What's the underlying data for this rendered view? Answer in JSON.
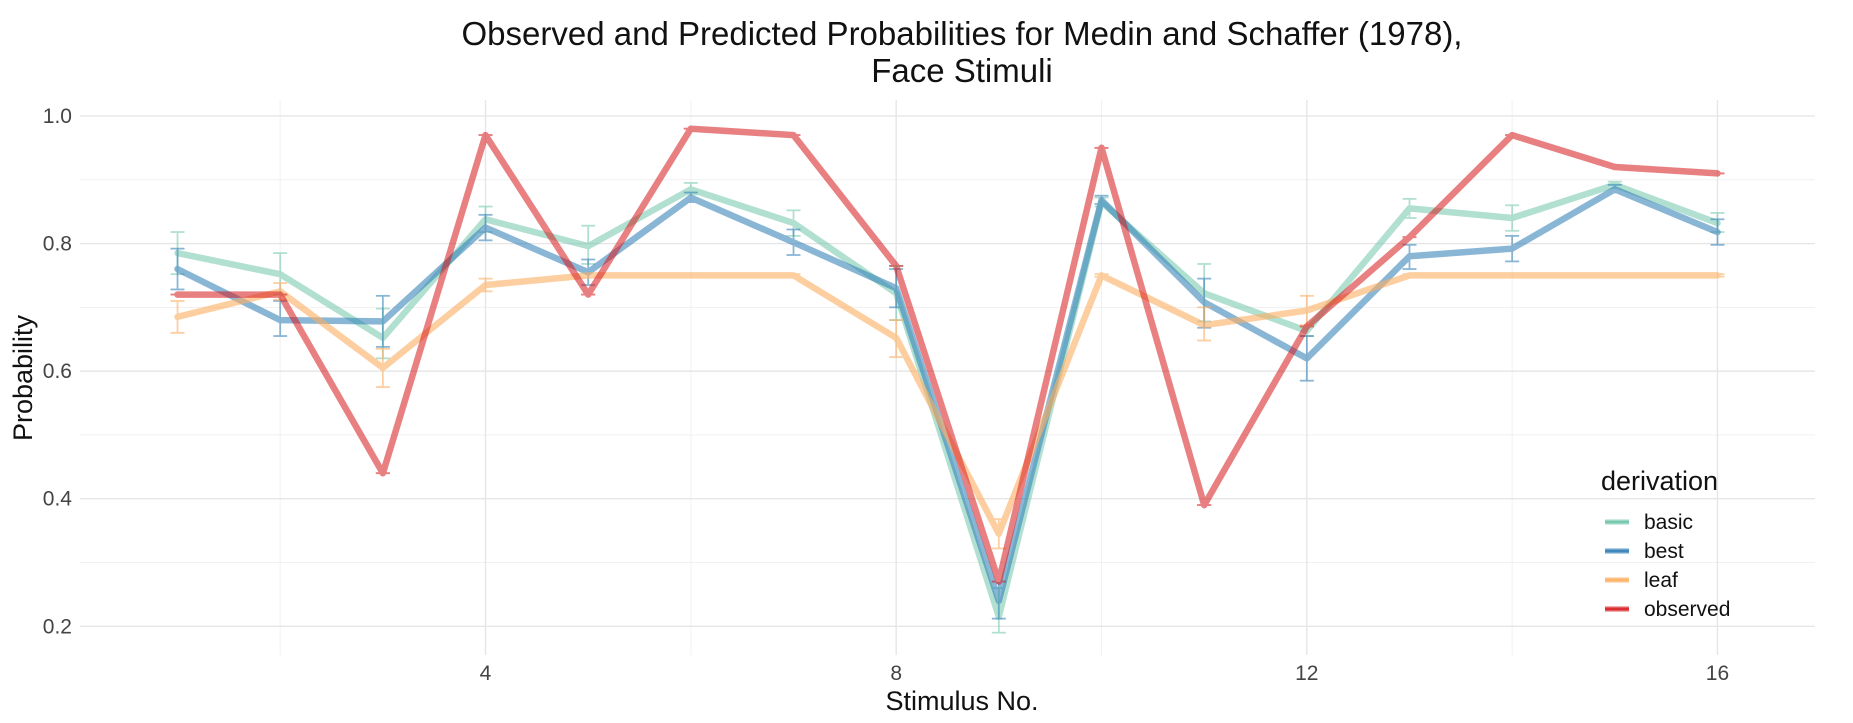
{
  "chart_data": {
    "type": "line",
    "title_line1": "Observed and Predicted Probabilities for Medin and Schaffer (1978),",
    "title_line2": "Face Stimuli",
    "xlabel": "Stimulus No.",
    "ylabel": "Probability",
    "xlim": [
      0.05,
      16.95
    ],
    "ylim": [
      0.155,
      1.025
    ],
    "x_ticks": [
      4,
      8,
      12,
      16
    ],
    "x_minor": [
      2,
      6,
      10,
      14
    ],
    "y_ticks": [
      0.2,
      0.4,
      0.6,
      0.8,
      1.0
    ],
    "y_tick_labels": [
      "0.2",
      "0.4",
      "0.6",
      "0.8",
      "1.0"
    ],
    "y_minor": [
      0.3,
      0.5,
      0.7,
      0.9
    ],
    "grid": true,
    "legend": {
      "title": "derivation",
      "position": "bottom-right"
    },
    "x": [
      1,
      2,
      3,
      4,
      5,
      6,
      7,
      8,
      9,
      10,
      11,
      12,
      13,
      14,
      15,
      16
    ],
    "series": [
      {
        "name": "basic",
        "color": "#66c2a5",
        "opacity": 0.5,
        "values": [
          0.785,
          0.752,
          0.652,
          0.838,
          0.796,
          0.885,
          0.832,
          0.722,
          0.215,
          0.865,
          0.722,
          0.663,
          0.855,
          0.84,
          0.892,
          0.832
        ],
        "err_low": [
          0.752,
          0.72,
          0.62,
          0.818,
          0.768,
          0.877,
          0.812,
          0.68,
          0.19,
          0.858,
          0.678,
          0.655,
          0.84,
          0.82,
          0.887,
          0.818
        ],
        "err_high": [
          0.818,
          0.785,
          0.698,
          0.858,
          0.828,
          0.895,
          0.852,
          0.765,
          0.26,
          0.872,
          0.768,
          0.67,
          0.87,
          0.86,
          0.897,
          0.848
        ]
      },
      {
        "name": "best",
        "color": "#2c7bb6",
        "opacity": 0.55,
        "values": [
          0.76,
          0.68,
          0.678,
          0.825,
          0.755,
          0.872,
          0.802,
          0.73,
          0.24,
          0.868,
          0.708,
          0.62,
          0.78,
          0.792,
          0.885,
          0.818
        ],
        "err_low": [
          0.728,
          0.655,
          0.638,
          0.805,
          0.735,
          0.865,
          0.782,
          0.7,
          0.212,
          0.862,
          0.668,
          0.585,
          0.76,
          0.772,
          0.88,
          0.798
        ],
        "err_high": [
          0.792,
          0.71,
          0.718,
          0.845,
          0.775,
          0.88,
          0.822,
          0.76,
          0.268,
          0.875,
          0.745,
          0.655,
          0.798,
          0.812,
          0.892,
          0.838
        ]
      },
      {
        "name": "leaf",
        "color": "#fdae61",
        "opacity": 0.6,
        "values": [
          0.685,
          0.725,
          0.605,
          0.735,
          0.75,
          0.75,
          0.75,
          0.652,
          0.345,
          0.75,
          0.672,
          0.695,
          0.75,
          0.75,
          0.75,
          0.75
        ],
        "err_low": [
          0.66,
          0.712,
          0.575,
          0.725,
          0.748,
          0.748,
          0.748,
          0.622,
          0.322,
          0.748,
          0.648,
          0.672,
          0.748,
          0.748,
          0.748,
          0.748
        ],
        "err_high": [
          0.71,
          0.738,
          0.635,
          0.745,
          0.752,
          0.752,
          0.752,
          0.68,
          0.368,
          0.752,
          0.7,
          0.718,
          0.752,
          0.752,
          0.752,
          0.752
        ]
      },
      {
        "name": "observed",
        "color": "#d7191c",
        "opacity": 0.55,
        "values": [
          0.72,
          0.72,
          0.44,
          0.97,
          0.72,
          0.98,
          0.97,
          0.765,
          0.27,
          0.95,
          0.39,
          0.67,
          0.81,
          0.97,
          0.92,
          0.91
        ],
        "err_low": [
          0.72,
          0.72,
          0.44,
          0.97,
          0.72,
          0.98,
          0.97,
          0.765,
          0.27,
          0.95,
          0.39,
          0.67,
          0.81,
          0.97,
          0.92,
          0.91
        ],
        "err_high": [
          0.72,
          0.72,
          0.44,
          0.97,
          0.72,
          0.98,
          0.97,
          0.765,
          0.27,
          0.95,
          0.39,
          0.67,
          0.81,
          0.97,
          0.92,
          0.91
        ]
      }
    ]
  }
}
